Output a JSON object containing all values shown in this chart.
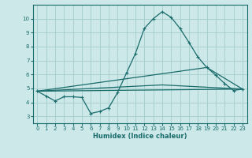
{
  "xlabel": "Humidex (Indice chaleur)",
  "bg_color": "#cce8e8",
  "grid_color": "#aad0d0",
  "line_color": "#1a6b6b",
  "xlim": [
    -0.5,
    23.5
  ],
  "ylim": [
    2.5,
    11.0
  ],
  "xticks": [
    0,
    1,
    2,
    3,
    4,
    5,
    6,
    7,
    8,
    9,
    10,
    11,
    12,
    13,
    14,
    15,
    16,
    17,
    18,
    19,
    20,
    21,
    22,
    23
  ],
  "yticks": [
    3,
    4,
    5,
    6,
    7,
    8,
    9,
    10
  ],
  "series_main": {
    "x": [
      0,
      1,
      2,
      3,
      4,
      5,
      6,
      7,
      8,
      9,
      10,
      11,
      12,
      13,
      14,
      15,
      16,
      17,
      18,
      19,
      20,
      21,
      22,
      23
    ],
    "y": [
      4.8,
      4.45,
      4.1,
      4.4,
      4.4,
      4.35,
      3.2,
      3.35,
      3.6,
      4.7,
      6.1,
      7.5,
      9.3,
      10.0,
      10.5,
      10.1,
      9.3,
      8.3,
      7.25,
      6.5,
      5.95,
      5.35,
      4.85,
      4.95
    ]
  },
  "series_lines": [
    {
      "x": [
        0,
        23
      ],
      "y": [
        4.8,
        4.95
      ]
    },
    {
      "x": [
        0,
        19,
        23
      ],
      "y": [
        4.8,
        6.5,
        4.95
      ]
    },
    {
      "x": [
        0,
        14,
        23
      ],
      "y": [
        4.8,
        5.25,
        4.95
      ]
    }
  ]
}
